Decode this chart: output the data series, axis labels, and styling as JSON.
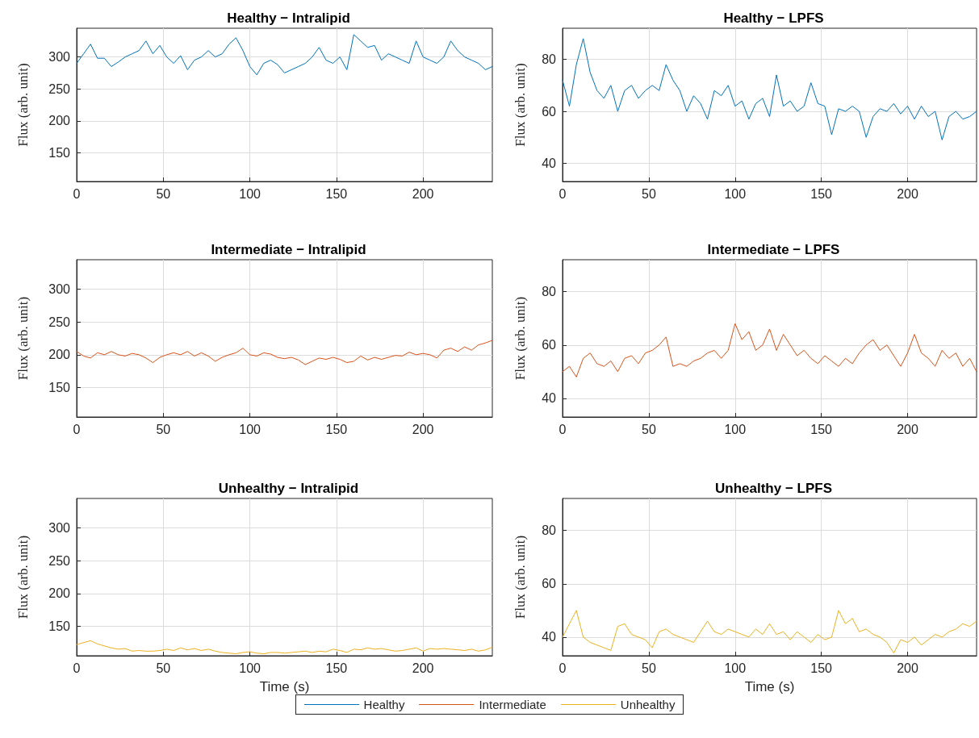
{
  "chart_data": [
    {
      "type": "line",
      "title": "Healthy − Intralipid",
      "ylabel": "Flux (arb. unit)",
      "xlim": [
        0,
        240
      ],
      "xticks": [
        0,
        50,
        100,
        150,
        200
      ],
      "ylim": [
        105,
        345
      ],
      "yticks": [
        150,
        200,
        250,
        300
      ],
      "grid": true,
      "legend": "bottom",
      "x": [
        0,
        4,
        8,
        12,
        16,
        20,
        24,
        28,
        32,
        36,
        40,
        44,
        48,
        52,
        56,
        60,
        64,
        68,
        72,
        76,
        80,
        84,
        88,
        92,
        96,
        100,
        104,
        108,
        112,
        116,
        120,
        124,
        128,
        132,
        136,
        140,
        144,
        148,
        152,
        156,
        160,
        164,
        168,
        172,
        176,
        180,
        184,
        188,
        192,
        196,
        200,
        204,
        208,
        212,
        216,
        220,
        224,
        228,
        232,
        236,
        240
      ],
      "series": [
        {
          "name": "Healthy",
          "color": "#0072bd",
          "values": [
            290,
            305,
            320,
            298,
            298,
            285,
            292,
            300,
            305,
            310,
            325,
            305,
            318,
            300,
            290,
            302,
            280,
            295,
            300,
            310,
            300,
            305,
            320,
            330,
            310,
            285,
            272,
            290,
            295,
            288,
            275,
            280,
            285,
            290,
            300,
            315,
            295,
            290,
            300,
            280,
            335,
            325,
            315,
            318,
            295,
            305,
            300,
            295,
            290,
            325,
            300,
            295,
            290,
            300,
            325,
            310,
            300,
            295,
            290,
            280,
            285
          ]
        }
      ]
    },
    {
      "type": "line",
      "title": "Healthy − LPFS",
      "ylabel": "Flux (arb. unit)",
      "xlim": [
        0,
        240
      ],
      "xticks": [
        0,
        50,
        100,
        150,
        200
      ],
      "ylim": [
        33,
        92
      ],
      "yticks": [
        40,
        60,
        80
      ],
      "grid": true,
      "legend": "bottom",
      "x": [
        0,
        4,
        8,
        12,
        16,
        20,
        24,
        28,
        32,
        36,
        40,
        44,
        48,
        52,
        56,
        60,
        64,
        68,
        72,
        76,
        80,
        84,
        88,
        92,
        96,
        100,
        104,
        108,
        112,
        116,
        120,
        124,
        128,
        132,
        136,
        140,
        144,
        148,
        152,
        156,
        160,
        164,
        168,
        172,
        176,
        180,
        184,
        188,
        192,
        196,
        200,
        204,
        208,
        212,
        216,
        220,
        224,
        228,
        232,
        236,
        240
      ],
      "series": [
        {
          "name": "Healthy",
          "color": "#0072bd",
          "values": [
            72,
            62,
            78,
            88,
            75,
            68,
            65,
            70,
            60,
            68,
            70,
            65,
            68,
            70,
            68,
            78,
            72,
            68,
            60,
            66,
            63,
            57,
            68,
            66,
            70,
            62,
            64,
            57,
            63,
            65,
            58,
            74,
            62,
            64,
            60,
            62,
            71,
            63,
            62,
            51,
            61,
            60,
            62,
            60,
            50,
            58,
            61,
            60,
            63,
            59,
            62,
            57,
            62,
            58,
            60,
            49,
            58,
            60,
            57,
            58,
            60
          ]
        }
      ]
    },
    {
      "type": "line",
      "title": "Intermediate − Intralipid",
      "ylabel": "Flux (arb. unit)",
      "xlim": [
        0,
        240
      ],
      "xticks": [
        0,
        50,
        100,
        150,
        200
      ],
      "ylim": [
        105,
        345
      ],
      "yticks": [
        150,
        200,
        250,
        300
      ],
      "grid": true,
      "legend": "bottom",
      "x": [
        0,
        4,
        8,
        12,
        16,
        20,
        24,
        28,
        32,
        36,
        40,
        44,
        48,
        52,
        56,
        60,
        64,
        68,
        72,
        76,
        80,
        84,
        88,
        92,
        96,
        100,
        104,
        108,
        112,
        116,
        120,
        124,
        128,
        132,
        136,
        140,
        144,
        148,
        152,
        156,
        160,
        164,
        168,
        172,
        176,
        180,
        184,
        188,
        192,
        196,
        200,
        204,
        208,
        212,
        216,
        220,
        224,
        228,
        232,
        236,
        240
      ],
      "series": [
        {
          "name": "Intermediate",
          "color": "#d95319",
          "values": [
            205,
            198,
            195,
            203,
            200,
            205,
            200,
            198,
            202,
            200,
            195,
            188,
            196,
            200,
            203,
            200,
            205,
            198,
            203,
            198,
            190,
            196,
            200,
            203,
            210,
            200,
            198,
            203,
            201,
            196,
            194,
            196,
            192,
            185,
            190,
            195,
            193,
            196,
            193,
            188,
            190,
            198,
            192,
            196,
            193,
            196,
            199,
            198,
            204,
            200,
            202,
            200,
            195,
            207,
            210,
            205,
            212,
            207,
            215,
            218,
            222
          ]
        }
      ]
    },
    {
      "type": "line",
      "title": "Intermediate − LPFS",
      "ylabel": "Flux (arb. unit)",
      "xlim": [
        0,
        240
      ],
      "xticks": [
        0,
        50,
        100,
        150,
        200
      ],
      "ylim": [
        33,
        92
      ],
      "yticks": [
        40,
        60,
        80
      ],
      "grid": true,
      "legend": "bottom",
      "x": [
        0,
        4,
        8,
        12,
        16,
        20,
        24,
        28,
        32,
        36,
        40,
        44,
        48,
        52,
        56,
        60,
        64,
        68,
        72,
        76,
        80,
        84,
        88,
        92,
        96,
        100,
        104,
        108,
        112,
        116,
        120,
        124,
        128,
        132,
        136,
        140,
        144,
        148,
        152,
        156,
        160,
        164,
        168,
        172,
        176,
        180,
        184,
        188,
        192,
        196,
        200,
        204,
        208,
        212,
        216,
        220,
        224,
        228,
        232,
        236,
        240
      ],
      "series": [
        {
          "name": "Intermediate",
          "color": "#d95319",
          "values": [
            50,
            52,
            48,
            55,
            57,
            53,
            52,
            54,
            50,
            55,
            56,
            53,
            57,
            58,
            60,
            63,
            52,
            53,
            52,
            54,
            55,
            57,
            58,
            55,
            58,
            68,
            62,
            65,
            58,
            60,
            66,
            58,
            64,
            60,
            56,
            58,
            55,
            53,
            56,
            54,
            52,
            55,
            53,
            57,
            60,
            62,
            58,
            60,
            56,
            52,
            57,
            64,
            57,
            55,
            52,
            58,
            55,
            57,
            52,
            55,
            50
          ]
        }
      ]
    },
    {
      "type": "line",
      "title": "Unhealthy − Intralipid",
      "xlabel": "Time (s)",
      "ylabel": "Flux (arb. unit)",
      "xlim": [
        0,
        240
      ],
      "xticks": [
        0,
        50,
        100,
        150,
        200
      ],
      "ylim": [
        105,
        345
      ],
      "yticks": [
        150,
        200,
        250,
        300
      ],
      "grid": true,
      "legend": "bottom",
      "x": [
        0,
        4,
        8,
        12,
        16,
        20,
        24,
        28,
        32,
        36,
        40,
        44,
        48,
        52,
        56,
        60,
        64,
        68,
        72,
        76,
        80,
        84,
        88,
        92,
        96,
        100,
        104,
        108,
        112,
        116,
        120,
        124,
        128,
        132,
        136,
        140,
        144,
        148,
        152,
        156,
        160,
        164,
        168,
        172,
        176,
        180,
        184,
        188,
        192,
        196,
        200,
        204,
        208,
        212,
        216,
        220,
        224,
        228,
        232,
        236,
        240
      ],
      "series": [
        {
          "name": "Unhealthy",
          "color": "#edb120",
          "values": [
            122,
            125,
            128,
            123,
            120,
            117,
            115,
            116,
            112,
            113,
            112,
            112,
            113,
            115,
            113,
            117,
            114,
            116,
            113,
            115,
            112,
            110,
            109,
            108,
            110,
            111,
            109,
            108,
            110,
            110,
            109,
            110,
            111,
            112,
            110,
            112,
            111,
            115,
            113,
            110,
            115,
            114,
            117,
            115,
            116,
            114,
            112,
            113,
            115,
            117,
            112,
            116,
            115,
            116,
            115,
            114,
            113,
            115,
            112,
            114,
            118
          ]
        }
      ]
    },
    {
      "type": "line",
      "title": "Unhealthy − LPFS",
      "xlabel": "Time (s)",
      "ylabel": "Flux (arb. unit)",
      "xlim": [
        0,
        240
      ],
      "xticks": [
        0,
        50,
        100,
        150,
        200
      ],
      "ylim": [
        33,
        92
      ],
      "yticks": [
        40,
        60,
        80
      ],
      "grid": true,
      "legend": "bottom",
      "x": [
        0,
        4,
        8,
        12,
        16,
        20,
        24,
        28,
        32,
        36,
        40,
        44,
        48,
        52,
        56,
        60,
        64,
        68,
        72,
        76,
        80,
        84,
        88,
        92,
        96,
        100,
        104,
        108,
        112,
        116,
        120,
        124,
        128,
        132,
        136,
        140,
        144,
        148,
        152,
        156,
        160,
        164,
        168,
        172,
        176,
        180,
        184,
        188,
        192,
        196,
        200,
        204,
        208,
        212,
        216,
        220,
        224,
        228,
        232,
        236,
        240
      ],
      "series": [
        {
          "name": "Unhealthy",
          "color": "#edb120",
          "values": [
            40,
            45,
            50,
            40,
            38,
            37,
            36,
            35,
            44,
            45,
            41,
            40,
            39,
            36,
            42,
            43,
            41,
            40,
            39,
            38,
            42,
            46,
            42,
            41,
            43,
            42,
            41,
            40,
            43,
            41,
            45,
            41,
            42,
            39,
            42,
            40,
            38,
            41,
            39,
            40,
            50,
            45,
            47,
            42,
            43,
            41,
            40,
            38,
            34,
            39,
            38,
            40,
            37,
            39,
            41,
            40,
            42,
            43,
            45,
            44,
            46
          ]
        }
      ]
    }
  ]
}
